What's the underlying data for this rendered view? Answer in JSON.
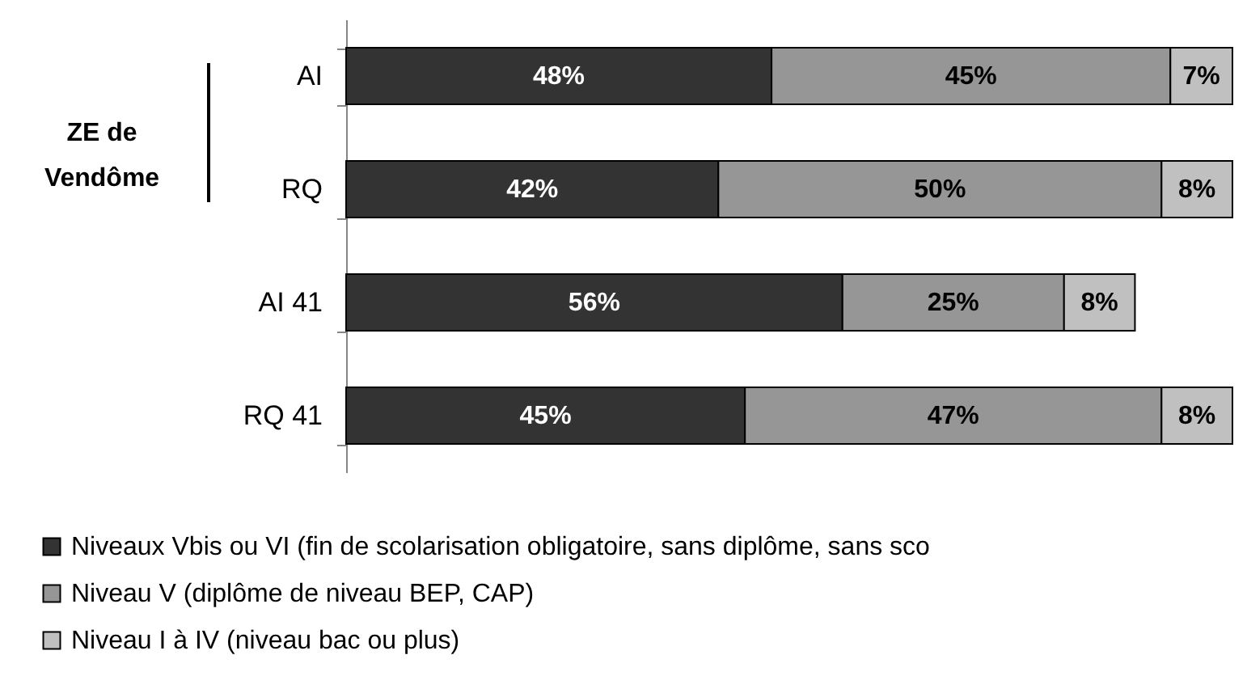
{
  "chart_data": {
    "type": "bar",
    "orientation": "horizontal",
    "stacked": true,
    "categories": [
      "AI",
      "RQ",
      "AI 41",
      "RQ 41"
    ],
    "series": [
      {
        "name": "Niveaux Vbis ou VI (fin de scolarisation obligatoire, sans diplôme, sans sco",
        "color": "#333333",
        "values": [
          48,
          42,
          56,
          45
        ],
        "value_labels": [
          "48%",
          "42%",
          "56%",
          "45%"
        ]
      },
      {
        "name": "Niveau V (diplôme de niveau BEP, CAP)",
        "color": "#969696",
        "values": [
          45,
          50,
          25,
          47
        ],
        "value_labels": [
          "45%",
          "50%",
          "25%",
          "47%"
        ]
      },
      {
        "name": "Niveau I à IV (niveau bac ou plus)",
        "color": "#c0c0c0",
        "values": [
          7,
          8,
          8,
          8
        ],
        "value_labels": [
          "7%",
          "8%",
          "8%",
          "8%"
        ]
      }
    ],
    "annotations": [
      "ZE de\nVendôme"
    ],
    "legend": "bottom",
    "grid": false,
    "tick_labels": "y"
  }
}
